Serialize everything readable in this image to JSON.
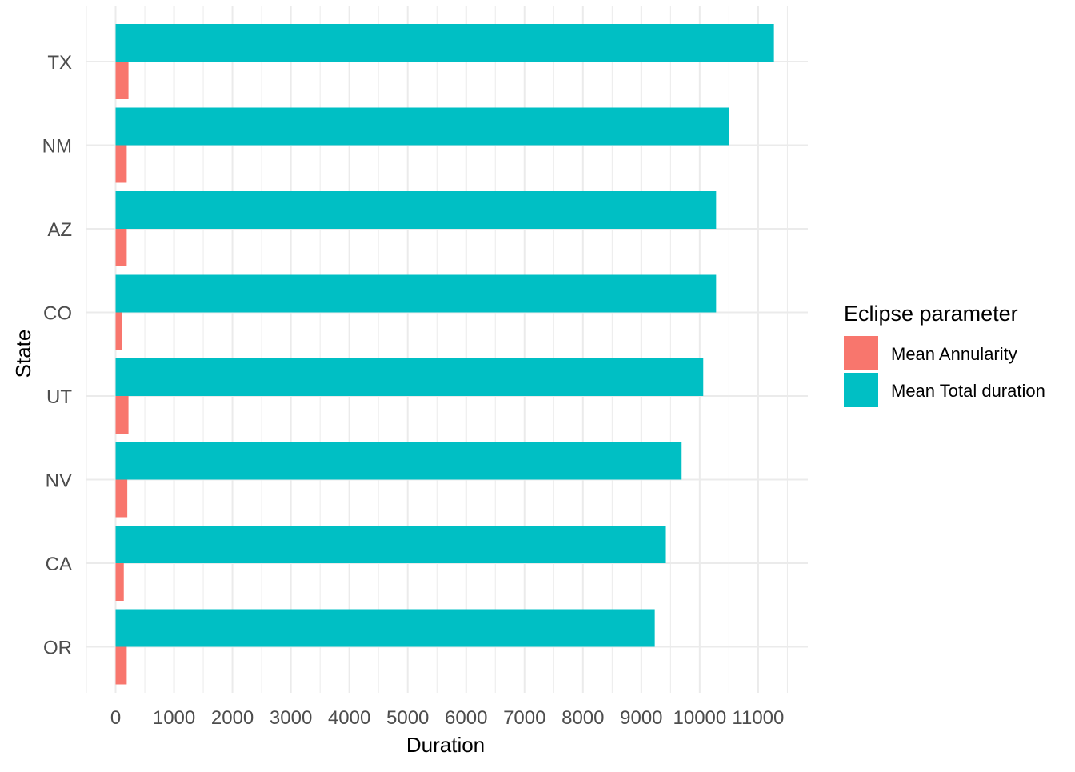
{
  "chart_data": {
    "type": "bar",
    "orientation": "horizontal",
    "title": "",
    "xlabel": "Duration",
    "ylabel": "State",
    "categories": [
      "TX",
      "NM",
      "AZ",
      "CO",
      "UT",
      "NV",
      "CA",
      "OR"
    ],
    "series": [
      {
        "name": "Mean Total duration",
        "color": "#00BFC4",
        "values": [
          11270,
          10500,
          10280,
          10280,
          10060,
          9690,
          9420,
          9230
        ]
      },
      {
        "name": "Mean Annularity",
        "color": "#F8766D",
        "values": [
          220,
          190,
          190,
          110,
          220,
          200,
          140,
          190
        ]
      }
    ],
    "xlim": [
      -500,
      11850
    ],
    "x_ticks": [
      0,
      1000,
      2000,
      3000,
      4000,
      5000,
      6000,
      7000,
      8000,
      9000,
      10000,
      11000
    ],
    "x_tick_labels": [
      "0",
      "1000",
      "2000",
      "3000",
      "4000",
      "5000",
      "6000",
      "7000",
      "8000",
      "9000",
      "10000",
      "11000"
    ],
    "grid": true,
    "legend": {
      "title": "Eclipse parameter",
      "position": "right",
      "entries": [
        {
          "label": "Mean Annularity",
          "color": "#F8766D"
        },
        {
          "label": "Mean Total duration",
          "color": "#00BFC4"
        }
      ]
    }
  }
}
